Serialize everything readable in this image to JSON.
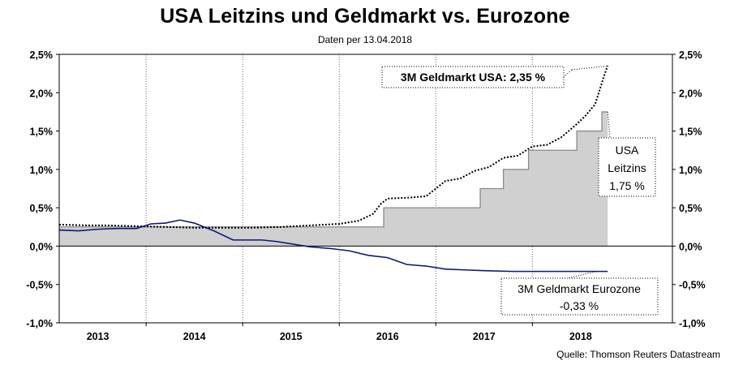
{
  "header": {
    "title": "USA Leitzins und Geldmarkt vs. Eurozone",
    "subtitle": "Daten per 13.04.2018",
    "source": "Quelle: Thomson Reuters Datastream"
  },
  "colors": {
    "fed_fill": "#d0d0d0",
    "fed_line": "#8a8a8a",
    "usa_money": "#000000",
    "euro_money": "#0a1a7a",
    "zero_line": "#000000",
    "grid": "#666666"
  },
  "chart_data": {
    "type": "line",
    "title": "USA Leitzins und Geldmarkt vs. Eurozone",
    "subtitle": "Daten per 13.04.2018",
    "xlabel": "",
    "ylabel": "",
    "xlim": [
      2012.6,
      2018.95
    ],
    "ylim": [
      -1.0,
      2.5
    ],
    "y_ticks": [
      -1.0,
      -0.5,
      0.0,
      0.5,
      1.0,
      1.5,
      2.0,
      2.5
    ],
    "y_tick_labels": [
      "-1,0%",
      "-0,5%",
      "0,0%",
      "0,5%",
      "1,0%",
      "1,5%",
      "2,0%",
      "2,5%"
    ],
    "x_categories": [
      "2013",
      "2014",
      "2015",
      "2016",
      "2017",
      "2018"
    ],
    "x_category_centers": [
      2013.0,
      2014.0,
      2015.0,
      2016.0,
      2017.0,
      2018.0
    ],
    "year_separators": [
      2013.5,
      2014.5,
      2015.5,
      2016.5,
      2017.5
    ],
    "series": [
      {
        "name": "USA Leitzins",
        "style": "area-step",
        "x": [
          2012.6,
          2015.96,
          2015.96,
          2016.96,
          2016.96,
          2017.2,
          2017.2,
          2017.46,
          2017.46,
          2017.96,
          2017.96,
          2018.22,
          2018.22,
          2018.28
        ],
        "values": [
          0.25,
          0.25,
          0.5,
          0.5,
          0.75,
          0.75,
          1.0,
          1.0,
          1.25,
          1.25,
          1.5,
          1.5,
          1.75,
          1.75
        ]
      },
      {
        "name": "3M Geldmarkt USA",
        "style": "dotted",
        "x": [
          2012.6,
          2012.9,
          2013.1,
          2013.4,
          2013.7,
          2014.0,
          2014.3,
          2014.6,
          2014.9,
          2015.2,
          2015.5,
          2015.7,
          2015.85,
          2015.93,
          2016.0,
          2016.2,
          2016.4,
          2016.6,
          2016.75,
          2016.9,
          2017.05,
          2017.2,
          2017.35,
          2017.5,
          2017.65,
          2017.8,
          2017.95,
          2018.05,
          2018.15,
          2018.25,
          2018.28
        ],
        "values": [
          0.28,
          0.27,
          0.27,
          0.26,
          0.25,
          0.24,
          0.24,
          0.24,
          0.25,
          0.27,
          0.29,
          0.33,
          0.42,
          0.55,
          0.62,
          0.63,
          0.65,
          0.85,
          0.88,
          0.98,
          1.03,
          1.15,
          1.18,
          1.3,
          1.32,
          1.42,
          1.58,
          1.7,
          1.85,
          2.25,
          2.35
        ]
      },
      {
        "name": "3M Geldmarkt Eurozone",
        "style": "solid",
        "x": [
          2012.6,
          2012.8,
          2013.0,
          2013.2,
          2013.4,
          2013.55,
          2013.7,
          2013.85,
          2014.0,
          2014.2,
          2014.4,
          2014.55,
          2014.7,
          2014.85,
          2015.0,
          2015.2,
          2015.4,
          2015.6,
          2015.8,
          2016.0,
          2016.2,
          2016.4,
          2016.6,
          2016.8,
          2017.0,
          2017.3,
          2017.6,
          2017.9,
          2018.1,
          2018.28
        ],
        "values": [
          0.21,
          0.2,
          0.22,
          0.23,
          0.23,
          0.29,
          0.3,
          0.34,
          0.3,
          0.2,
          0.08,
          0.08,
          0.08,
          0.06,
          0.03,
          -0.01,
          -0.03,
          -0.06,
          -0.12,
          -0.15,
          -0.24,
          -0.26,
          -0.3,
          -0.31,
          -0.32,
          -0.33,
          -0.33,
          -0.33,
          -0.33,
          -0.33
        ]
      }
    ],
    "annotations": [
      {
        "series": "3M Geldmarkt USA",
        "text": "3M Geldmarkt USA: 2,35 %"
      },
      {
        "series": "USA Leitzins",
        "lines": [
          "USA",
          "Leitzins",
          "1,75 %"
        ]
      },
      {
        "series": "3M Geldmarkt Eurozone",
        "lines": [
          "3M Geldmarkt Eurozone",
          "-0,33 %"
        ]
      }
    ]
  }
}
